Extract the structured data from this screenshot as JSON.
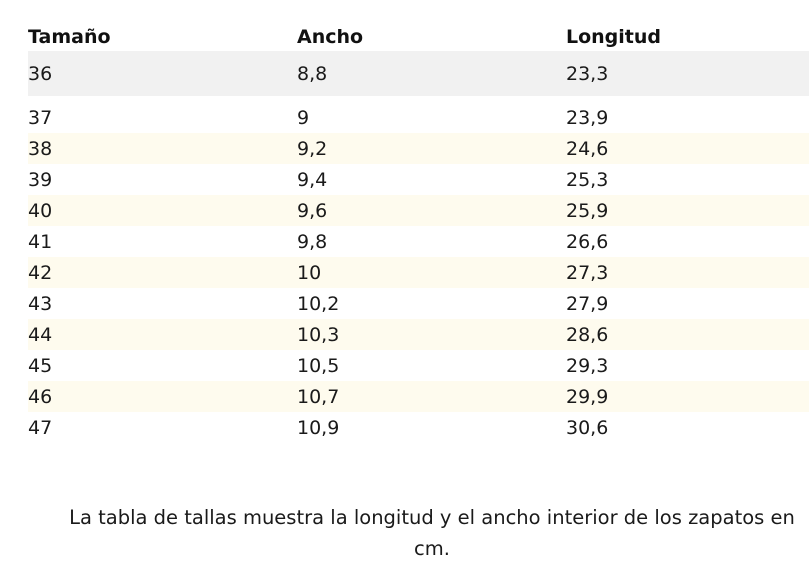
{
  "table": {
    "headers": [
      "Tamaño",
      "Ancho",
      "Longitud"
    ],
    "rows": [
      [
        "36",
        "8,8",
        "23,3"
      ],
      [
        "37",
        "9",
        "23,9"
      ],
      [
        "38",
        "9,2",
        "24,6"
      ],
      [
        "39",
        "9,4",
        "25,3"
      ],
      [
        "40",
        "9,6",
        "25,9"
      ],
      [
        "41",
        "9,8",
        "26,6"
      ],
      [
        "42",
        "10",
        "27,3"
      ],
      [
        "43",
        "10,2",
        "27,9"
      ],
      [
        "44",
        "10,3",
        "28,6"
      ],
      [
        "45",
        "10,5",
        "29,3"
      ],
      [
        "46",
        "10,7",
        "29,9"
      ],
      [
        "47",
        "10,9",
        "30,6"
      ]
    ]
  },
  "caption": "La tabla de tallas muestra la longitud y el ancho interior de los zapatos en cm.",
  "colors": {
    "first_row_bg": "#f1f1f1",
    "stripe_bg": "#fefbee",
    "text": "#1a1a1a"
  }
}
